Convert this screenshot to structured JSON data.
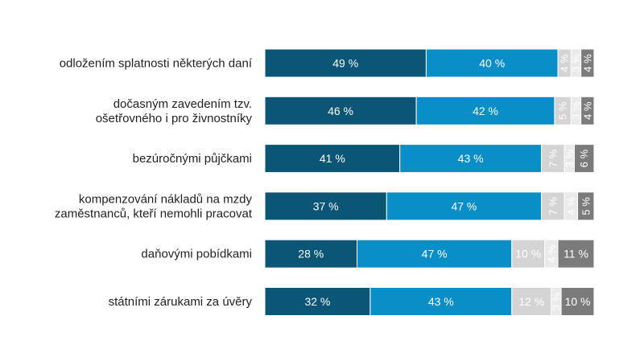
{
  "chart_data": {
    "type": "bar",
    "orientation": "horizontal",
    "stacked": true,
    "percent_stacked": true,
    "categories": [
      [
        "odložením splatnosti některých daní"
      ],
      [
        "dočasným zavedením tzv.",
        "ošetřovného i pro živnostníky"
      ],
      [
        "bezúročnými půjčkami"
      ],
      [
        "kompenzování nákladů na mzdy",
        "zaměstnanců, kteří nemohli pracovat"
      ],
      [
        "daňovými pobídkami"
      ],
      [
        "státními zárukami za úvěry"
      ]
    ],
    "series": [
      {
        "values": [
          49,
          46,
          41,
          37,
          28,
          32
        ],
        "color": "#0b5577",
        "label_color": "#ffffff"
      },
      {
        "values": [
          40,
          42,
          43,
          47,
          47,
          43
        ],
        "color": "#0a8ec8",
        "label_color": "#ffffff"
      },
      {
        "values": [
          4,
          5,
          7,
          7,
          10,
          12
        ],
        "color": "#d4d4d4",
        "label_color": "#ffffff"
      },
      {
        "values": [
          3,
          3,
          3,
          4,
          4,
          3
        ],
        "color": "#eaeaea",
        "label_color": "#ffffff"
      },
      {
        "values": [
          4,
          4,
          6,
          5,
          11,
          10
        ],
        "color": "#7b7b7b",
        "label_color": "#ffffff"
      }
    ],
    "value_suffix": " %",
    "xlim": [
      0,
      100
    ],
    "grid": false,
    "legend": "none"
  }
}
